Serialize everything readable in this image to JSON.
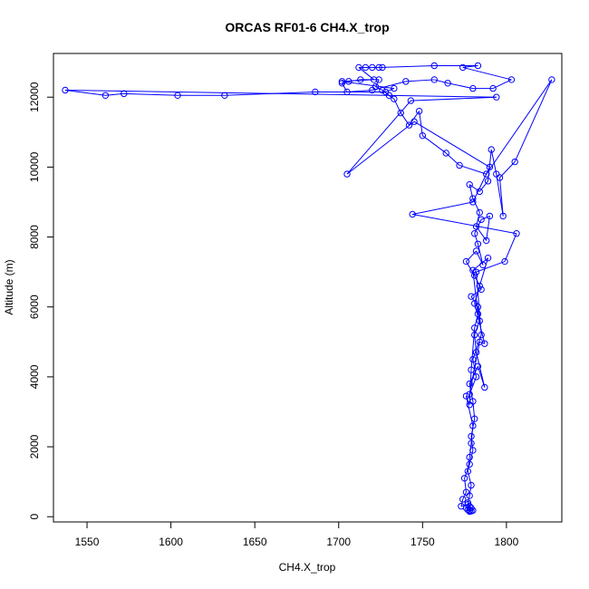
{
  "chart_data": {
    "type": "line",
    "title": "ORCAS RF01-6 CH4.X_trop",
    "xlabel": "CH4.X_trop",
    "ylabel": "Altitude (m)",
    "xlim": [
      1530,
      1833
    ],
    "ylim": [
      -150,
      13250
    ],
    "x_ticks": [
      1550,
      1600,
      1650,
      1700,
      1750,
      1800
    ],
    "y_ticks": [
      0,
      2000,
      4000,
      6000,
      8000,
      10000,
      12000
    ],
    "grid": false,
    "legend": "none",
    "marker": "open-circle",
    "series": [
      {
        "color": "#0000ff",
        "points": [
          [
            1778,
            150
          ],
          [
            1777,
            200
          ],
          [
            1779,
            160
          ],
          [
            1776,
            250
          ],
          [
            1778,
            300
          ],
          [
            1780,
            180
          ],
          [
            1777,
            350
          ],
          [
            1773,
            300
          ],
          [
            1774,
            500
          ],
          [
            1776,
            700
          ],
          [
            1775,
            1100
          ],
          [
            1778,
            1500
          ],
          [
            1780,
            1900
          ],
          [
            1779,
            2300
          ],
          [
            1781,
            2800
          ],
          [
            1780,
            3300
          ],
          [
            1778,
            3800
          ],
          [
            1783,
            4300
          ],
          [
            1787,
            3700
          ],
          [
            1782,
            4700
          ],
          [
            1781,
            5200
          ],
          [
            1784,
            5600
          ],
          [
            1783,
            6000
          ],
          [
            1779,
            6300
          ],
          [
            1785,
            6500
          ],
          [
            1781,
            6900
          ],
          [
            1776,
            7300
          ],
          [
            1782,
            7600
          ],
          [
            1786,
            7200
          ],
          [
            1783,
            7800
          ],
          [
            1781,
            8100
          ],
          [
            1785,
            8500
          ],
          [
            1790,
            8600
          ],
          [
            1788,
            7900
          ],
          [
            1782,
            8300
          ],
          [
            1784,
            8700
          ],
          [
            1780,
            9100
          ],
          [
            1778,
            9500
          ],
          [
            1784,
            9300
          ],
          [
            1789,
            9600
          ],
          [
            1791,
            10500
          ],
          [
            1794,
            9800
          ],
          [
            1798,
            8600
          ],
          [
            1796,
            9700
          ],
          [
            1805,
            10150
          ],
          [
            1827,
            12500
          ],
          [
            1788,
            9800
          ],
          [
            1772,
            10050
          ],
          [
            1764,
            10400
          ],
          [
            1750,
            10900
          ],
          [
            1748,
            11600
          ],
          [
            1742,
            11200
          ],
          [
            1737,
            11550
          ],
          [
            1733,
            11950
          ],
          [
            1730,
            12050
          ],
          [
            1726,
            12200
          ],
          [
            1722,
            12300
          ],
          [
            1724,
            12500
          ],
          [
            1713,
            12500
          ],
          [
            1706,
            12450
          ],
          [
            1702,
            12400
          ],
          [
            1705,
            12150
          ],
          [
            1720,
            12200
          ],
          [
            1740,
            12450
          ],
          [
            1757,
            12500
          ],
          [
            1765,
            12400
          ],
          [
            1780,
            12250
          ],
          [
            1792,
            12250
          ],
          [
            1803,
            12500
          ],
          [
            1774,
            12850
          ],
          [
            1783,
            12900
          ],
          [
            1757,
            12900
          ],
          [
            1726,
            12850
          ],
          [
            1724,
            12850
          ],
          [
            1720,
            12850
          ],
          [
            1716,
            12850
          ],
          [
            1712,
            12850
          ],
          [
            1721,
            12500
          ],
          [
            1702,
            12450
          ],
          [
            1733,
            12250
          ],
          [
            1728,
            12150
          ],
          [
            1686,
            12150
          ],
          [
            1632,
            12050
          ],
          [
            1604,
            12050
          ],
          [
            1572,
            12100
          ],
          [
            1561,
            12050
          ],
          [
            1537,
            12200
          ],
          [
            1794,
            12000
          ],
          [
            1743,
            11900
          ],
          [
            1705,
            9800
          ],
          [
            1745,
            11300
          ],
          [
            1790,
            10000
          ],
          [
            1780,
            9000
          ],
          [
            1744,
            8650
          ],
          [
            1806,
            8100
          ],
          [
            1799,
            7300
          ],
          [
            1782,
            7000
          ],
          [
            1785,
            5200
          ],
          [
            1780,
            4500
          ],
          [
            1782,
            4000
          ],
          [
            1778,
            3500
          ],
          [
            1784,
            5000
          ],
          [
            1787,
            4950
          ],
          [
            1781,
            6100
          ],
          [
            1784,
            6600
          ],
          [
            1789,
            7400
          ],
          [
            1780,
            7050
          ],
          [
            1783,
            5800
          ],
          [
            1781,
            5400
          ],
          [
            1779,
            4200
          ],
          [
            1778,
            3200
          ],
          [
            1776,
            3450
          ],
          [
            1780,
            2600
          ],
          [
            1779,
            2100
          ],
          [
            1778,
            1700
          ],
          [
            1777,
            1300
          ],
          [
            1779,
            900
          ],
          [
            1778,
            600
          ],
          [
            1777,
            400
          ],
          [
            1779,
            250
          ],
          [
            1778,
            180
          ]
        ]
      }
    ]
  }
}
